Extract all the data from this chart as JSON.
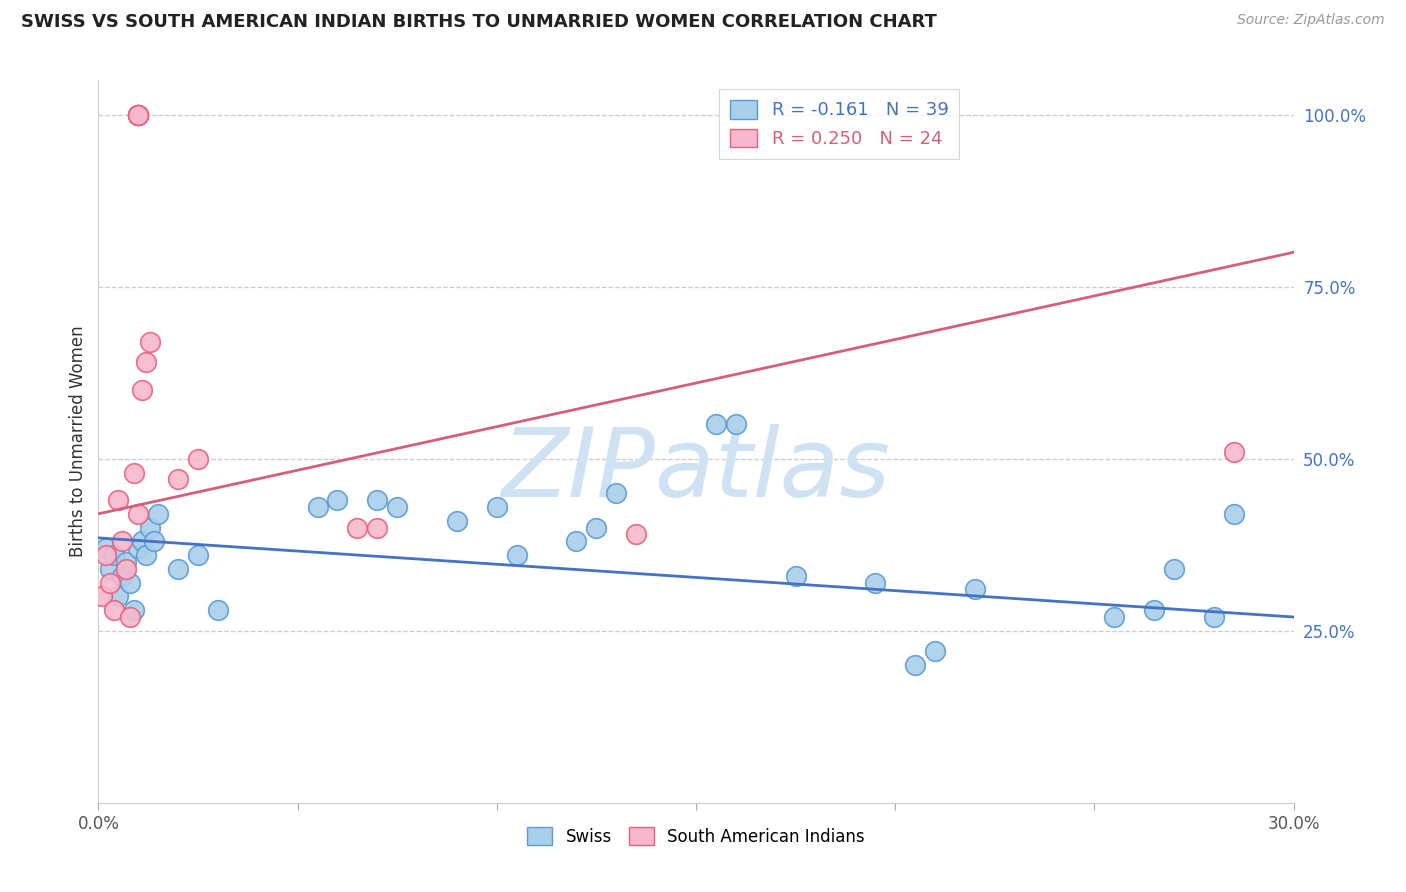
{
  "title": "SWISS VS SOUTH AMERICAN INDIAN BIRTHS TO UNMARRIED WOMEN CORRELATION CHART",
  "source": "Source: ZipAtlas.com",
  "ylabel": "Births to Unmarried Women",
  "xlim": [
    0.0,
    0.3
  ],
  "ylim": [
    0.0,
    1.05
  ],
  "x_ticks": [
    0.0,
    0.05,
    0.1,
    0.15,
    0.2,
    0.25,
    0.3
  ],
  "y_ticks_right": [
    0.25,
    0.5,
    0.75,
    1.0
  ],
  "y_tick_labels_right": [
    "25.0%",
    "50.0%",
    "75.0%",
    "100.0%"
  ],
  "legend_entry1": "R = -0.161   N = 39",
  "legend_entry2": "R = 0.250   N = 24",
  "blue_fill": "#aacfea",
  "blue_edge": "#5b9bd5",
  "pink_fill": "#f7b8ce",
  "pink_edge": "#e8607a",
  "blue_line_color": "#4472c4",
  "pink_line_color": "#d45f7a",
  "watermark": "ZIPatlas",
  "watermark_color": "#cfe2f3",
  "swiss_x": [
    0.002,
    0.003,
    0.004,
    0.005,
    0.006,
    0.007,
    0.008,
    0.009,
    0.01,
    0.011,
    0.012,
    0.013,
    0.014,
    0.015,
    0.02,
    0.025,
    0.03,
    0.055,
    0.06,
    0.07,
    0.075,
    0.09,
    0.1,
    0.105,
    0.12,
    0.125,
    0.13,
    0.155,
    0.16,
    0.175,
    0.195,
    0.205,
    0.21,
    0.22,
    0.255,
    0.265,
    0.27,
    0.28,
    0.285
  ],
  "swiss_y": [
    0.37,
    0.34,
    0.36,
    0.3,
    0.33,
    0.35,
    0.32,
    0.28,
    0.37,
    0.38,
    0.36,
    0.4,
    0.38,
    0.42,
    0.34,
    0.36,
    0.28,
    0.43,
    0.44,
    0.44,
    0.43,
    0.41,
    0.43,
    0.36,
    0.38,
    0.4,
    0.45,
    0.55,
    0.55,
    0.33,
    0.32,
    0.2,
    0.22,
    0.31,
    0.27,
    0.28,
    0.34,
    0.27,
    0.42
  ],
  "sai_x": [
    0.001,
    0.002,
    0.003,
    0.004,
    0.005,
    0.006,
    0.007,
    0.008,
    0.009,
    0.01,
    0.011,
    0.012,
    0.013,
    0.02,
    0.025,
    0.065,
    0.07,
    0.135,
    0.285,
    0.01,
    0.01,
    0.01,
    0.01,
    0.01
  ],
  "sai_y": [
    0.3,
    0.36,
    0.32,
    0.28,
    0.44,
    0.38,
    0.34,
    0.27,
    0.48,
    0.42,
    0.6,
    0.64,
    0.67,
    0.47,
    0.5,
    0.4,
    0.4,
    0.39,
    0.51,
    1.0,
    1.0,
    1.0,
    1.0,
    1.0
  ],
  "blue_trend_x": [
    0.0,
    0.3
  ],
  "blue_trend_y": [
    0.385,
    0.27
  ],
  "pink_trend_x": [
    0.0,
    0.3
  ],
  "pink_trend_y": [
    0.42,
    0.8
  ]
}
